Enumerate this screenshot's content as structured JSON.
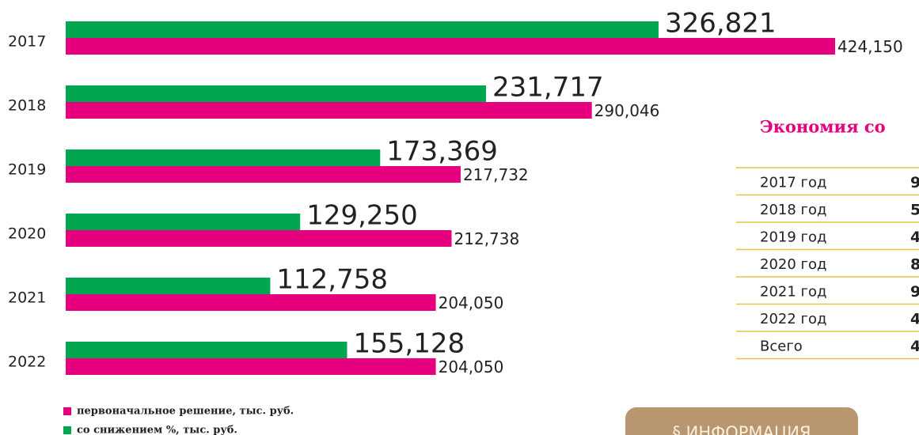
{
  "chart_data": {
    "type": "bar",
    "orientation": "horizontal",
    "categories": [
      "2017",
      "2018",
      "2019",
      "2020",
      "2021",
      "2022"
    ],
    "series": [
      {
        "name": "первоначальное решение, тыс. руб.",
        "color": "#e6007e",
        "values": [
          424.15,
          290.046,
          217.732,
          212.738,
          204.05,
          204.05
        ],
        "value_labels": [
          "424,150",
          "290,046",
          "217,732",
          "212,738",
          "204,050",
          "204,050"
        ]
      },
      {
        "name": "со снижением %, тыс. руб.",
        "color": "#00a650",
        "values": [
          326.821,
          231.717,
          173.369,
          129.25,
          112.758,
          155.128
        ],
        "value_labels": [
          "326,821",
          "231,717",
          "173,369",
          "129,250",
          "112,758",
          "155,128"
        ]
      }
    ]
  },
  "savings": {
    "title": "Экономия со",
    "rows": [
      [
        "2017 год",
        "9"
      ],
      [
        "2018 год",
        "5"
      ],
      [
        "2019 год",
        "4"
      ],
      [
        "2020 год",
        "8"
      ],
      [
        "2021 год",
        "9"
      ],
      [
        "2022 год",
        "4"
      ],
      [
        "Всего",
        "4"
      ]
    ]
  },
  "button": {
    "label": "§ ИНФОРМАЦИЯ"
  }
}
